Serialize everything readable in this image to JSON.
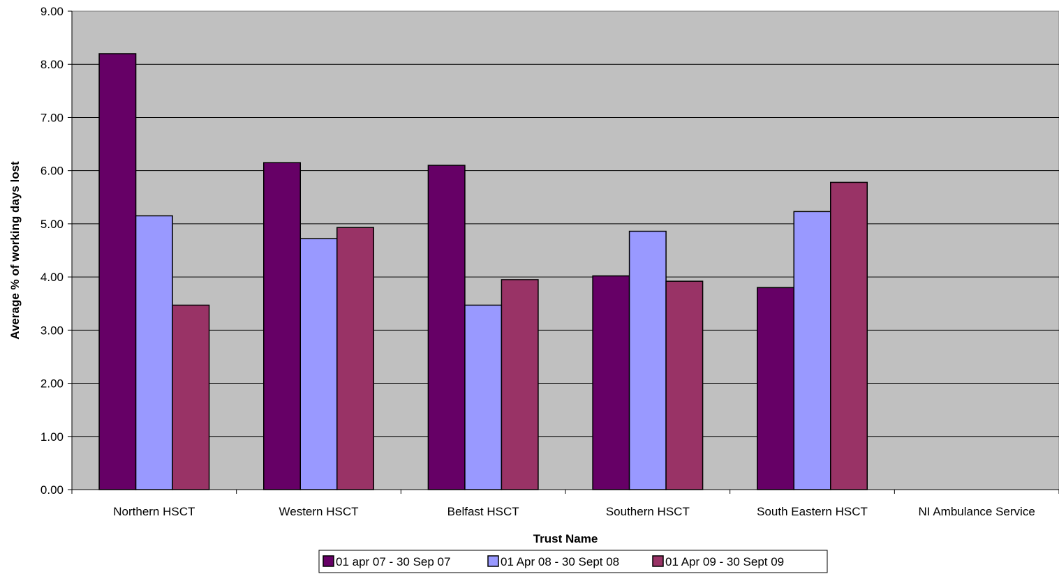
{
  "chart_data": {
    "type": "bar",
    "xlabel": "Trust Name",
    "ylabel": "Average % of working days lost",
    "ylim": [
      0,
      9
    ],
    "y_ticks": [
      "0.00",
      "1.00",
      "2.00",
      "3.00",
      "4.00",
      "5.00",
      "6.00",
      "7.00",
      "8.00",
      "9.00"
    ],
    "grid": true,
    "legend_position": "bottom",
    "plot_background": "#c0c0c0",
    "categories": [
      "Northern HSCT",
      "Western HSCT",
      "Belfast HSCT",
      "Southern HSCT",
      "South Eastern HSCT",
      "NI Ambulance Service"
    ],
    "series": [
      {
        "name": "01 apr 07 - 30 Sep 07",
        "color": "#660066",
        "values": [
          8.2,
          6.15,
          6.1,
          4.02,
          3.8,
          null
        ]
      },
      {
        "name": "01 Apr 08 - 30 Sept 08",
        "color": "#9999ff",
        "values": [
          5.15,
          4.72,
          3.47,
          4.86,
          5.23,
          null
        ]
      },
      {
        "name": "01 Apr 09 - 30 Sept 09",
        "color": "#993366",
        "values": [
          3.47,
          4.93,
          3.95,
          3.92,
          5.78,
          null
        ]
      }
    ]
  }
}
